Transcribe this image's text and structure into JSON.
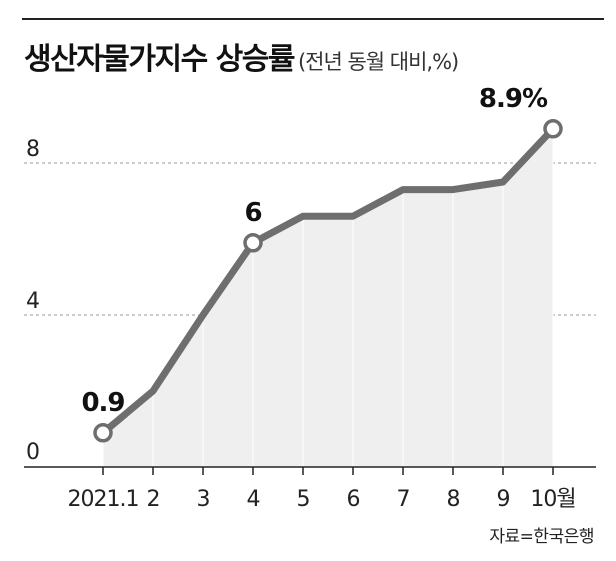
{
  "title": "생산자물가지수 상승률",
  "subtitle": "(전년 동월 대비,%)",
  "source": "자료=한국은행",
  "colors": {
    "line": "#6e6e6e",
    "area": "#efefef",
    "grid": "#9a9a9a",
    "axis": "#222222",
    "marker_fill": "#ffffff"
  },
  "chart_data": {
    "type": "area",
    "title": "생산자물가지수 상승률",
    "subtitle": "(전년 동월 대비,%)",
    "categories": [
      "2021.1",
      "2",
      "3",
      "4",
      "5",
      "6",
      "7",
      "8",
      "9",
      "10월"
    ],
    "values": [
      0.9,
      2.0,
      4.0,
      5.9,
      6.6,
      6.6,
      7.3,
      7.3,
      7.5,
      8.9
    ],
    "ylim": [
      0,
      9
    ],
    "yticks": [
      "0",
      "4",
      "8"
    ],
    "grid": "dashed horizontal",
    "annotations": [
      {
        "index": 0,
        "label": "0.9"
      },
      {
        "index": 3,
        "label": "6"
      },
      {
        "index": 9,
        "label": "8.9%"
      }
    ]
  }
}
